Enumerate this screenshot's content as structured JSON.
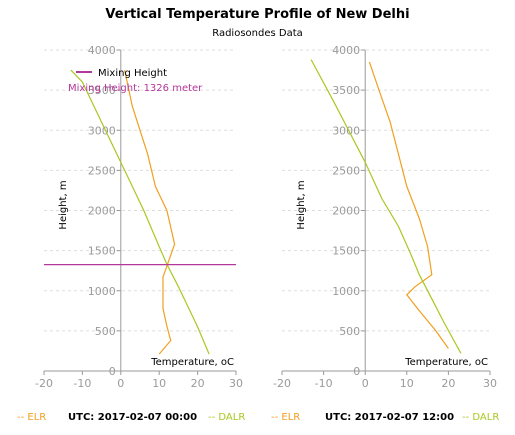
{
  "title": "Vertical Temperature Profile of New Delhi",
  "subtitle": "Radiosondes Data",
  "colors": {
    "elr": "#f0a020",
    "dalr": "#a8c820",
    "mixing": "#b4389a",
    "axis": "#9a9a9a",
    "grid": "#dddddd"
  },
  "chart_data": [
    {
      "type": "line",
      "xlabel": "Temperature, oC",
      "ylabel": "Height, m",
      "xlim": [
        -20,
        30
      ],
      "ylim": [
        0,
        4000
      ],
      "xticks": [
        "-20",
        "-10",
        "0",
        "10",
        "20",
        "30"
      ],
      "yticks": [
        "0",
        "500",
        "1000",
        "1500",
        "2000",
        "2500",
        "3000",
        "3500",
        "4000"
      ],
      "utc": "UTC: 2017-02-07 00:00",
      "legend": {
        "label": "Mixing Height",
        "position": "top-left"
      },
      "mixing_height": 1326,
      "mixing_height_label": "Mixing Height: 1326 meter",
      "series": [
        {
          "name": "ELR",
          "x": [
            10,
            13,
            12,
            11,
            11,
            11,
            14,
            12,
            9,
            7,
            5,
            3,
            1
          ],
          "y": [
            210,
            380,
            560,
            780,
            1050,
            1170,
            1580,
            2000,
            2300,
            2700,
            3000,
            3300,
            3750
          ]
        },
        {
          "name": "DALR",
          "x": [
            23,
            20,
            17,
            15,
            12,
            10,
            6,
            2,
            -2,
            -6,
            -10,
            -13
          ],
          "y": [
            210,
            550,
            850,
            1050,
            1330,
            1550,
            2000,
            2400,
            2800,
            3200,
            3600,
            3750
          ]
        }
      ],
      "footer": {
        "left": "-- ELR",
        "right": "-- DALR"
      }
    },
    {
      "type": "line",
      "xlabel": "Temperature, oC",
      "ylabel": "Height, m",
      "xlim": [
        -20,
        30
      ],
      "ylim": [
        0,
        4000
      ],
      "xticks": [
        "-20",
        "-10",
        "0",
        "10",
        "20",
        "30"
      ],
      "yticks": [
        "0",
        "500",
        "1000",
        "1500",
        "2000",
        "2500",
        "3000",
        "3500",
        "4000"
      ],
      "utc": "UTC: 2017-02-07 12:00",
      "series": [
        {
          "name": "ELR",
          "x": [
            20,
            17,
            13,
            10,
            12,
            16,
            15,
            13,
            10,
            8,
            6,
            4,
            2,
            1
          ],
          "y": [
            280,
            500,
            750,
            950,
            1050,
            1200,
            1550,
            1900,
            2300,
            2700,
            3100,
            3400,
            3700,
            3850
          ]
        },
        {
          "name": "DALR",
          "x": [
            23,
            19,
            16,
            13,
            11,
            8,
            4,
            0,
            -4,
            -8,
            -13
          ],
          "y": [
            220,
            600,
            900,
            1200,
            1450,
            1800,
            2150,
            2600,
            3000,
            3400,
            3880
          ]
        }
      ],
      "footer": {
        "left": "-- ELR",
        "right": "-- DALR"
      }
    }
  ]
}
